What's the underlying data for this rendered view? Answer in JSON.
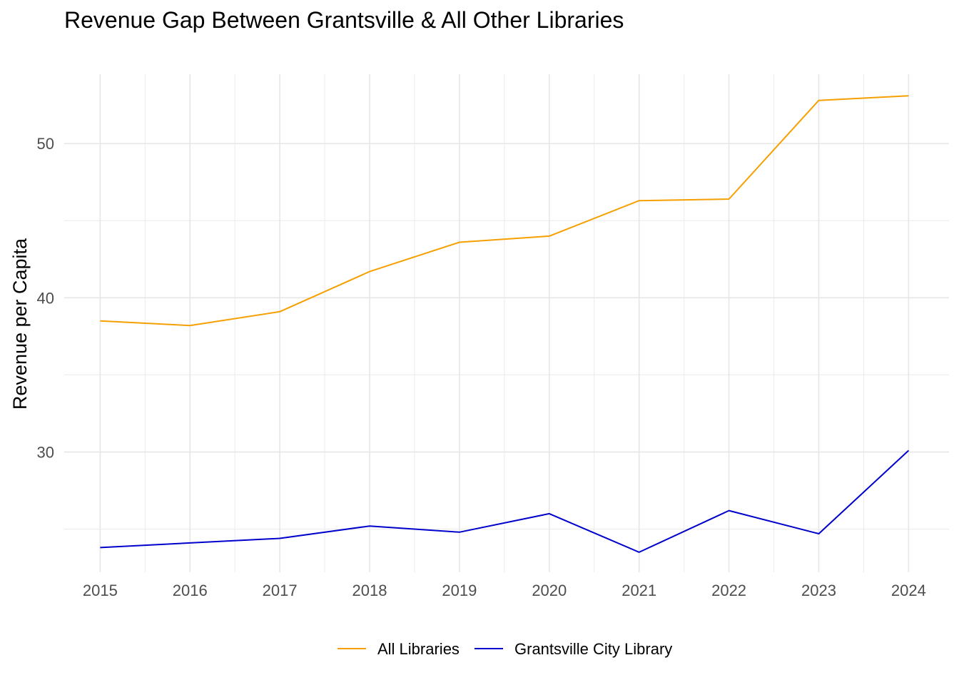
{
  "chart_data": {
    "type": "line",
    "title": "Revenue Gap Between Grantsville & All Other Libraries",
    "xlabel": "",
    "ylabel": "Revenue per Capita",
    "x": [
      2015,
      2016,
      2017,
      2018,
      2019,
      2020,
      2021,
      2022,
      2023,
      2024
    ],
    "x_ticks": [
      "2015",
      "2016",
      "2017",
      "2018",
      "2019",
      "2020",
      "2021",
      "2022",
      "2023",
      "2024"
    ],
    "y_ticks": [
      "30",
      "40",
      "50"
    ],
    "ylim": [
      22.2,
      54.5
    ],
    "xlim": [
      2014.6,
      2024.45
    ],
    "grid": true,
    "legend_position": "bottom",
    "series": [
      {
        "name": "All Libraries",
        "color": "#F5A000",
        "values": [
          38.5,
          38.2,
          39.1,
          41.7,
          43.6,
          44.0,
          46.3,
          46.4,
          52.8,
          53.1
        ]
      },
      {
        "name": "Grantsville City Library",
        "color": "#0000CD",
        "values": [
          23.8,
          24.1,
          24.4,
          25.2,
          24.8,
          26.0,
          23.5,
          26.2,
          24.7,
          30.1
        ]
      }
    ]
  }
}
